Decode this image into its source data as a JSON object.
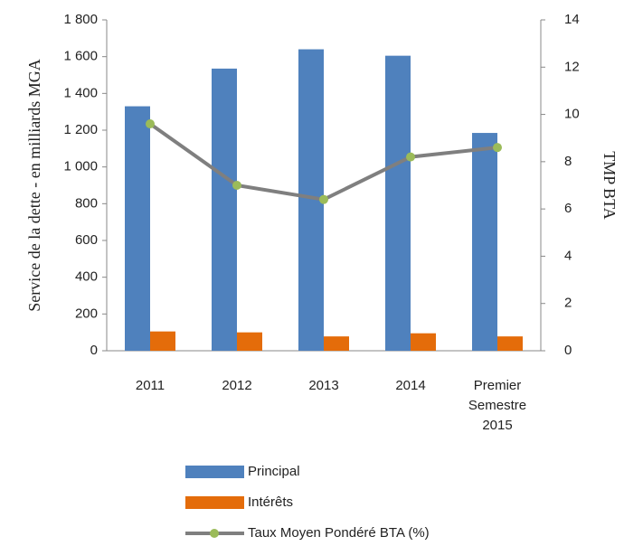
{
  "chart_data": {
    "type": "bar",
    "categories": [
      "2011",
      "2012",
      "2013",
      "2014",
      "Premier Semestre 2015"
    ],
    "series": [
      {
        "name": "Principal",
        "color": "#4f81bd",
        "values": [
          1330,
          1535,
          1640,
          1605,
          1185
        ]
      },
      {
        "name": "Intérêts",
        "color": "#e46c0a",
        "values": [
          105,
          100,
          78,
          95,
          78
        ]
      },
      {
        "name": "Taux Moyen Pondéré BTA (%)",
        "type": "line",
        "axis": "y2",
        "color": "#7f7f7f",
        "marker_color": "#9bbb59",
        "values": [
          9.6,
          7.0,
          6.4,
          8.2,
          8.6
        ]
      }
    ],
    "y_label": "Service de la dette - en milliards MGA",
    "y2_label": "TMP BTA",
    "ylim": [
      0,
      1800
    ],
    "yticks": [
      0,
      200,
      400,
      600,
      800,
      {
        "value": 1000,
        "label": "1 000"
      },
      {
        "value": 1200,
        "label": "1 200"
      },
      {
        "value": 1400,
        "label": "1 400"
      },
      {
        "value": 1600,
        "label": "1 600"
      },
      {
        "value": 1800,
        "label": "1 800"
      }
    ],
    "y2lim": [
      0,
      14
    ],
    "y2ticks": [
      0,
      2,
      4,
      6,
      8,
      10,
      12,
      14
    ],
    "grid": false,
    "legend": "bottom"
  }
}
